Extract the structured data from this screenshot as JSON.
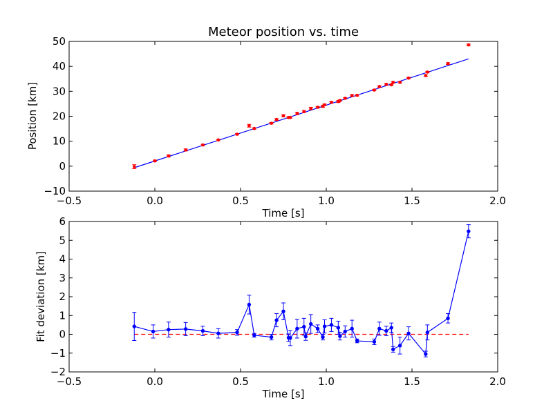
{
  "chart_data": [
    {
      "type": "scatter",
      "title": "Meteor position vs. time",
      "xlabel": "Time [s]",
      "ylabel": "Position [km]",
      "xlim": [
        -0.5,
        2.0
      ],
      "ylim": [
        -10,
        50
      ],
      "xticks": [
        "−0.5",
        "0.0",
        "0.5",
        "1.0",
        "1.5",
        "2.0"
      ],
      "yticks": [
        "−10",
        "0",
        "10",
        "20",
        "30",
        "40",
        "50"
      ],
      "grid": false,
      "colors": {
        "points": "#ff0000",
        "fit": "#0000ff"
      },
      "series": [
        {
          "kind": "points-with-errorbars",
          "x": [
            -0.12,
            0.0,
            0.08,
            0.18,
            0.28,
            0.37,
            0.48,
            0.55,
            0.58,
            0.68,
            0.71,
            0.75,
            0.78,
            0.79,
            0.83,
            0.87,
            0.91,
            0.95,
            0.98,
            0.99,
            1.03,
            1.07,
            1.08,
            1.11,
            1.15,
            1.18,
            1.28,
            1.31,
            1.35,
            1.38,
            1.39,
            1.43,
            1.48,
            1.58,
            1.59,
            1.71,
            1.83
          ],
          "y": [
            -0.2,
            2.1,
            4.1,
            6.5,
            8.5,
            10.5,
            12.8,
            16.2,
            15.1,
            17.2,
            18.7,
            20.2,
            19.5,
            19.5,
            21.1,
            21.9,
            23.1,
            23.6,
            24.0,
            24.6,
            25.6,
            25.9,
            26.3,
            27.2,
            28.3,
            28.4,
            30.5,
            31.9,
            32.8,
            32.6,
            33.6,
            33.6,
            35.3,
            36.3,
            37.7,
            41.1,
            48.6
          ],
          "yerr": [
            0.8,
            0.35,
            0.45,
            0.4,
            0.3,
            0.3,
            0.3,
            0.55,
            0.3,
            0.3,
            0.35,
            0.45,
            0.3,
            0.3,
            0.5,
            0.45,
            0.5,
            0.3,
            0.45,
            0.3,
            0.3,
            0.4,
            0.3,
            0.3,
            0.4,
            0.3,
            0.3,
            0.35,
            0.35,
            0.3,
            0.3,
            0.3,
            0.3,
            0.3,
            0.3,
            0.35,
            0.35
          ]
        },
        {
          "kind": "fit-line",
          "x": [
            -0.12,
            1.83
          ],
          "y": [
            -0.6,
            43.0
          ]
        }
      ]
    },
    {
      "type": "line",
      "xlabel": "Time [s]",
      "ylabel": "Fit deviation [km]",
      "xlim": [
        -0.5,
        2.0
      ],
      "ylim": [
        -2,
        6
      ],
      "xticks": [
        "−0.5",
        "0.0",
        "0.5",
        "1.0",
        "1.5",
        "2.0"
      ],
      "yticks": [
        "−2",
        "−1",
        "0",
        "1",
        "2",
        "3",
        "4",
        "5",
        "6"
      ],
      "grid": false,
      "colors": {
        "deviation": "#0000ff",
        "zero": "#ff0000"
      },
      "series": [
        {
          "kind": "line-with-errorbars",
          "x": [
            -0.12,
            -0.01,
            0.08,
            0.18,
            0.28,
            0.37,
            0.48,
            0.55,
            0.58,
            0.68,
            0.71,
            0.75,
            0.78,
            0.79,
            0.83,
            0.87,
            0.88,
            0.91,
            0.95,
            0.98,
            0.99,
            1.03,
            1.07,
            1.08,
            1.11,
            1.15,
            1.18,
            1.28,
            1.31,
            1.35,
            1.38,
            1.39,
            1.43,
            1.48,
            1.58,
            1.59,
            1.71,
            1.83
          ],
          "y": [
            0.42,
            0.15,
            0.25,
            0.28,
            0.18,
            0.05,
            0.1,
            1.58,
            -0.05,
            -0.15,
            0.75,
            1.22,
            -0.18,
            -0.2,
            0.3,
            0.4,
            -0.12,
            0.55,
            0.3,
            -0.15,
            0.42,
            0.5,
            0.35,
            -0.1,
            0.15,
            0.3,
            -0.35,
            -0.4,
            0.3,
            0.18,
            0.35,
            -0.8,
            -0.6,
            0.05,
            -1.05,
            0.1,
            0.85,
            5.48
          ],
          "yerr": [
            0.75,
            0.35,
            0.4,
            0.35,
            0.25,
            0.25,
            0.15,
            0.5,
            0.1,
            0.15,
            0.35,
            0.45,
            0.2,
            0.4,
            0.5,
            0.45,
            0.2,
            0.5,
            0.2,
            0.15,
            0.35,
            0.35,
            0.35,
            0.2,
            0.3,
            0.45,
            0.1,
            0.15,
            0.35,
            0.25,
            0.25,
            0.15,
            0.45,
            0.35,
            0.15,
            0.4,
            0.25,
            0.35
          ]
        },
        {
          "kind": "zero-line-dashed",
          "x": [
            -0.12,
            1.83
          ],
          "y": [
            0,
            0
          ]
        }
      ]
    }
  ]
}
